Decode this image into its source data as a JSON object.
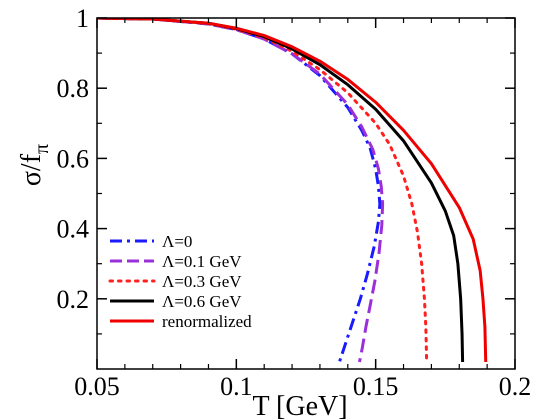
{
  "chart_data": {
    "type": "line",
    "title": "",
    "xlabel": "T [GeV]",
    "ylabel_main": "σ/f",
    "ylabel_sub": "π",
    "xlim": [
      0.05,
      0.2
    ],
    "ylim": [
      0,
      1.0
    ],
    "xticks": [
      0.05,
      0.1,
      0.15,
      0.2
    ],
    "xtick_labels": [
      "0.05",
      "0.1",
      "0.15",
      "0.2"
    ],
    "yticks": [
      0.2,
      0.4,
      0.6,
      0.8,
      1.0
    ],
    "ytick_labels": [
      "0.2",
      "0.4",
      "0.6",
      "0.8",
      "1"
    ],
    "grid": false,
    "legend_position": "bottom-left",
    "series": [
      {
        "name": "Λ=0",
        "color": "#1a1aff",
        "dash": "dashdot",
        "points": [
          [
            0.05,
            1.0
          ],
          [
            0.07,
            0.997
          ],
          [
            0.09,
            0.983
          ],
          [
            0.1,
            0.967
          ],
          [
            0.11,
            0.94
          ],
          [
            0.12,
            0.898
          ],
          [
            0.13,
            0.836
          ],
          [
            0.14,
            0.745
          ],
          [
            0.145,
            0.68
          ],
          [
            0.148,
            0.63
          ],
          [
            0.15,
            0.57
          ],
          [
            0.151,
            0.52
          ],
          [
            0.1515,
            0.47
          ],
          [
            0.151,
            0.42
          ],
          [
            0.1495,
            0.35
          ],
          [
            0.147,
            0.27
          ],
          [
            0.1445,
            0.2
          ],
          [
            0.142,
            0.14
          ],
          [
            0.1395,
            0.08
          ],
          [
            0.137,
            0.02
          ]
        ]
      },
      {
        "name": "Λ=0.1 GeV",
        "color": "#9b30d9",
        "dash": "dashed",
        "points": [
          [
            0.05,
            1.0
          ],
          [
            0.07,
            0.997
          ],
          [
            0.09,
            0.983
          ],
          [
            0.1,
            0.967
          ],
          [
            0.11,
            0.94
          ],
          [
            0.12,
            0.898
          ],
          [
            0.13,
            0.84
          ],
          [
            0.14,
            0.753
          ],
          [
            0.145,
            0.69
          ],
          [
            0.149,
            0.625
          ],
          [
            0.151,
            0.57
          ],
          [
            0.152,
            0.52
          ],
          [
            0.1525,
            0.47
          ],
          [
            0.1522,
            0.41
          ],
          [
            0.1512,
            0.33
          ],
          [
            0.1497,
            0.25
          ],
          [
            0.148,
            0.18
          ],
          [
            0.1465,
            0.12
          ],
          [
            0.1452,
            0.06
          ],
          [
            0.1442,
            0.02
          ]
        ]
      },
      {
        "name": "Λ=0.3 GeV",
        "color": "#ff2020",
        "dash": "dotted",
        "points": [
          [
            0.05,
            1.0
          ],
          [
            0.07,
            0.997
          ],
          [
            0.09,
            0.984
          ],
          [
            0.1,
            0.968
          ],
          [
            0.11,
            0.944
          ],
          [
            0.12,
            0.905
          ],
          [
            0.13,
            0.853
          ],
          [
            0.14,
            0.787
          ],
          [
            0.15,
            0.7
          ],
          [
            0.155,
            0.64
          ],
          [
            0.16,
            0.55
          ],
          [
            0.163,
            0.47
          ],
          [
            0.165,
            0.39
          ],
          [
            0.1665,
            0.3
          ],
          [
            0.1675,
            0.2
          ],
          [
            0.168,
            0.12
          ],
          [
            0.1683,
            0.02
          ]
        ]
      },
      {
        "name": "Λ=0.6 GeV",
        "color": "#000000",
        "dash": "solid",
        "points": [
          [
            0.05,
            1.0
          ],
          [
            0.07,
            0.997
          ],
          [
            0.09,
            0.985
          ],
          [
            0.1,
            0.97
          ],
          [
            0.11,
            0.947
          ],
          [
            0.12,
            0.912
          ],
          [
            0.13,
            0.867
          ],
          [
            0.14,
            0.81
          ],
          [
            0.15,
            0.74
          ],
          [
            0.16,
            0.65
          ],
          [
            0.17,
            0.53
          ],
          [
            0.175,
            0.45
          ],
          [
            0.178,
            0.38
          ],
          [
            0.1795,
            0.3
          ],
          [
            0.1805,
            0.2
          ],
          [
            0.181,
            0.1
          ],
          [
            0.1812,
            0.02
          ]
        ]
      },
      {
        "name": "renormalized",
        "color": "#ee0000",
        "dash": "solid",
        "points": [
          [
            0.05,
            1.0
          ],
          [
            0.07,
            0.997
          ],
          [
            0.09,
            0.985
          ],
          [
            0.1,
            0.971
          ],
          [
            0.11,
            0.95
          ],
          [
            0.12,
            0.918
          ],
          [
            0.13,
            0.877
          ],
          [
            0.14,
            0.825
          ],
          [
            0.15,
            0.76
          ],
          [
            0.16,
            0.68
          ],
          [
            0.17,
            0.585
          ],
          [
            0.18,
            0.46
          ],
          [
            0.185,
            0.37
          ],
          [
            0.1875,
            0.28
          ],
          [
            0.1885,
            0.2
          ],
          [
            0.1892,
            0.12
          ],
          [
            0.1895,
            0.02
          ]
        ]
      }
    ]
  }
}
